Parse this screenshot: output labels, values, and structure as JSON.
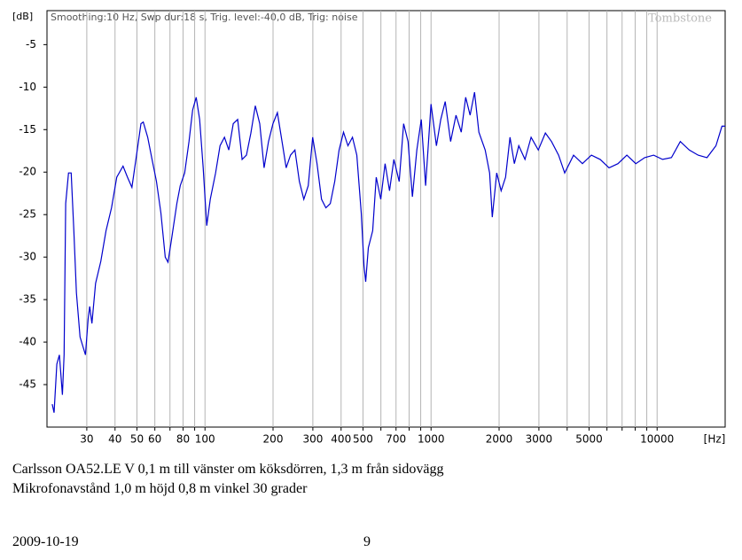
{
  "chart_data": {
    "type": "line",
    "y_unit": "[dB]",
    "x_unit": "[Hz]",
    "subtitle": "Smoothing:10 Hz, Swp dur:18 s, Trig. level:-40,0 dB, Trig: noise",
    "watermark": "Tombstone",
    "xscale": "log",
    "xlim": [
      20,
      20000
    ],
    "ylim": [
      -50,
      -1
    ],
    "xticks": [
      30,
      40,
      50,
      60,
      {
        "value": 70,
        "label": null
      },
      80,
      {
        "value": 90,
        "label": null
      },
      100,
      200,
      300,
      400,
      500,
      {
        "value": 600,
        "label": null
      },
      700,
      {
        "value": 800,
        "label": null
      },
      {
        "value": 900,
        "label": null
      },
      1000,
      2000,
      3000,
      {
        "value": 4000,
        "label": null
      },
      5000,
      {
        "value": 6000,
        "label": null
      },
      {
        "value": 7000,
        "label": null
      },
      {
        "value": 8000,
        "label": null
      },
      {
        "value": 9000,
        "label": null
      },
      10000
    ],
    "yticks": [
      -5,
      -10,
      -15,
      -20,
      -25,
      -30,
      -35,
      -40,
      -45
    ],
    "grid": "x",
    "color": "#0000cc",
    "x": [
      21.1,
      21.5,
      22.1,
      22.7,
      23.4,
      23.8,
      24.2,
      24.9,
      25.6,
      26.3,
      27,
      28,
      29.6,
      30.4,
      30.9,
      31.6,
      32.8,
      34.6,
      36.5,
      38.6,
      40.7,
      43.4,
      45.4,
      47.5,
      49.8,
      52.1,
      53.3,
      55.8,
      58.3,
      61,
      63.8,
      66.7,
      68.6,
      71.1,
      75.1,
      77.7,
      81.3,
      85,
      88.2,
      91.4,
      94.7,
      98.2,
      101.8,
      105.5,
      111.4,
      116.5,
      121.9,
      127.5,
      133.3,
      139.5,
      145.9,
      152.6,
      159.6,
      166.9,
      174.6,
      182.6,
      191,
      199.8,
      209,
      220.6,
      228.6,
      239,
      250,
      261.6,
      273.6,
      286.2,
      299.4,
      313,
      327.6,
      342.6,
      358.4,
      374.9,
      392,
      410,
      429,
      449,
      469.6,
      491,
      505,
      514,
      528,
      552,
      572,
      599,
      626,
      655,
      685,
      723,
      756,
      791,
      827,
      865,
      905,
      946,
      1000,
      1056,
      1104,
      1155,
      1220,
      1289,
      1360,
      1423,
      1489,
      1557,
      1628,
      1735,
      1815,
      1866,
      1952,
      2042,
      2136,
      2234,
      2337,
      2444,
      2603,
      2772,
      2980,
      3204,
      3410,
      3665,
      3900,
      4270,
      4675,
      5120,
      5600,
      6130,
      6710,
      7350,
      8050,
      8810,
      9650,
      10570,
      11570,
      12670,
      13870,
      15180,
      16620,
      18200,
      19360,
      20000
    ],
    "values": [
      -47.3,
      -48.3,
      -42.6,
      -41.5,
      -46.2,
      -41.5,
      -23.7,
      -20.1,
      -20.1,
      -26.9,
      -34.2,
      -39.4,
      -41.5,
      -37.3,
      -35.8,
      -37.8,
      -33.1,
      -30.5,
      -26.9,
      -24.2,
      -20.6,
      -19.3,
      -20.6,
      -21.8,
      -18,
      -14.3,
      -14.1,
      -15.9,
      -18.5,
      -21.1,
      -24.8,
      -30,
      -30.6,
      -27.9,
      -23.7,
      -21.6,
      -20.1,
      -16.4,
      -12.7,
      -11.2,
      -13.8,
      -19.5,
      -26.3,
      -23.2,
      -20.1,
      -16.9,
      -15.9,
      -17.4,
      -14.3,
      -13.8,
      -18.5,
      -18,
      -15.4,
      -12.2,
      -14.3,
      -19.5,
      -16.4,
      -14.3,
      -13,
      -16.9,
      -19.5,
      -18,
      -17.4,
      -21.1,
      -23.2,
      -21.6,
      -15.9,
      -19,
      -23.2,
      -24.2,
      -23.7,
      -21.1,
      -17.4,
      -15.3,
      -16.9,
      -15.9,
      -18,
      -24.8,
      -31,
      -32.9,
      -28.9,
      -26.9,
      -20.6,
      -23.2,
      -19,
      -22.2,
      -18.5,
      -21.1,
      -14.3,
      -16.4,
      -22.9,
      -17.4,
      -13.8,
      -21.6,
      -12,
      -16.9,
      -13.8,
      -11.7,
      -16.4,
      -13.3,
      -15.3,
      -11.2,
      -13.3,
      -10.6,
      -15.3,
      -17.4,
      -20.1,
      -25.3,
      -20.1,
      -22.2,
      -20.6,
      -15.9,
      -19,
      -16.9,
      -18.5,
      -15.9,
      -17.4,
      -15.4,
      -16.4,
      -18,
      -20.1,
      -18,
      -19,
      -18,
      -18.5,
      -19.5,
      -19,
      -18,
      -19,
      -18.3,
      -18,
      -18.5,
      -18.3,
      -16.4,
      -17.4,
      -18,
      -18.3,
      -16.9,
      -14.6,
      -14.6
    ]
  },
  "caption": [
    "Carlsson OA52.LE V 0,1 m till vänster om köksdörren, 1,3 m från sidovägg",
    "Mikrofonavstånd 1,0 m höjd 0,8 m vinkel 30 grader"
  ],
  "footer": {
    "date": "2009-10-19",
    "page": "9"
  }
}
